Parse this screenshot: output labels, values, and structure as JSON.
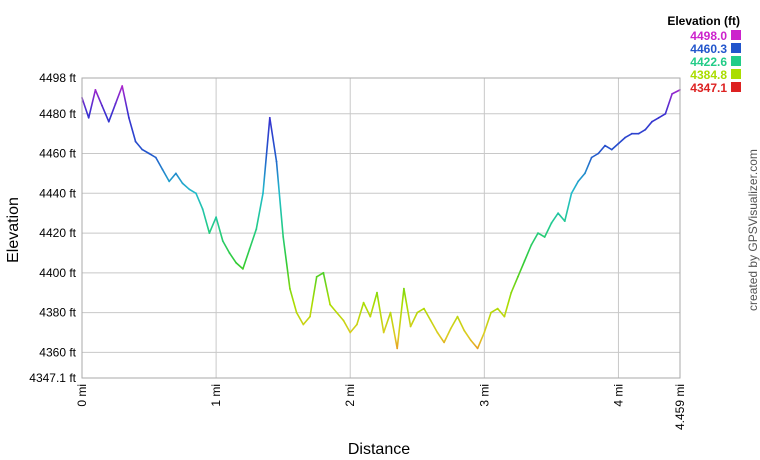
{
  "chart_data": {
    "type": "line",
    "xlabel": "Distance",
    "ylabel": "Elevation",
    "x_unit": "mi",
    "y_unit": "ft",
    "xlim": [
      0,
      4.459
    ],
    "ylim": [
      4347.1,
      4498
    ],
    "x_ticks": [
      "0 mi",
      "1 mi",
      "2 mi",
      "3 mi",
      "4 mi",
      "4.459 mi"
    ],
    "x_tick_values": [
      0,
      1,
      2,
      3,
      4,
      4.459
    ],
    "y_ticks": [
      "4347.1 ft",
      "4360 ft",
      "4380 ft",
      "4400 ft",
      "4420 ft",
      "4440 ft",
      "4460 ft",
      "4480 ft",
      "4498 ft"
    ],
    "y_tick_values": [
      4347.1,
      4360,
      4380,
      4400,
      4420,
      4440,
      4460,
      4480,
      4498
    ],
    "grid": true,
    "legend": {
      "title": "Elevation (ft)",
      "placement": "top-right",
      "entries": [
        {
          "label": "4498.0",
          "color": "#cc22cc"
        },
        {
          "label": "4460.3",
          "color": "#2255cc"
        },
        {
          "label": "4422.6",
          "color": "#22cc88"
        },
        {
          "label": "4384.8",
          "color": "#aadd00"
        },
        {
          "label": "4347.1",
          "color": "#dd2222"
        }
      ]
    },
    "credit": "created by GPSVisualizer.com",
    "x": [
      0,
      0.05,
      0.1,
      0.15,
      0.2,
      0.25,
      0.3,
      0.35,
      0.4,
      0.45,
      0.5,
      0.55,
      0.6,
      0.65,
      0.7,
      0.75,
      0.8,
      0.85,
      0.9,
      0.95,
      1.0,
      1.05,
      1.1,
      1.15,
      1.2,
      1.25,
      1.3,
      1.35,
      1.4,
      1.45,
      1.5,
      1.55,
      1.6,
      1.65,
      1.7,
      1.75,
      1.8,
      1.85,
      1.9,
      1.95,
      2.0,
      2.05,
      2.1,
      2.15,
      2.2,
      2.25,
      2.3,
      2.35,
      2.4,
      2.45,
      2.5,
      2.55,
      2.6,
      2.65,
      2.7,
      2.75,
      2.8,
      2.85,
      2.9,
      2.95,
      3.0,
      3.05,
      3.1,
      3.15,
      3.2,
      3.25,
      3.3,
      3.35,
      3.4,
      3.45,
      3.5,
      3.55,
      3.6,
      3.65,
      3.7,
      3.75,
      3.8,
      3.85,
      3.9,
      3.95,
      4.0,
      4.05,
      4.1,
      4.15,
      4.2,
      4.25,
      4.3,
      4.35,
      4.4,
      4.459
    ],
    "y": [
      4488,
      4478,
      4492,
      4484,
      4476,
      4485,
      4494,
      4478,
      4466,
      4462,
      4460,
      4458,
      4452,
      4446,
      4450,
      4445,
      4442,
      4440,
      4432,
      4420,
      4428,
      4416,
      4410,
      4405,
      4402,
      4412,
      4422,
      4440,
      4478,
      4456,
      4418,
      4392,
      4380,
      4374,
      4378,
      4398,
      4400,
      4384,
      4380,
      4376,
      4370,
      4374,
      4385,
      4378,
      4390,
      4370,
      4380,
      4362,
      4392,
      4373,
      4380,
      4382,
      4376,
      4370,
      4365,
      4372,
      4378,
      4371,
      4366,
      4362,
      4370,
      4380,
      4382,
      4378,
      4390,
      4398,
      4406,
      4414,
      4420,
      4418,
      4425,
      4430,
      4426,
      4440,
      4446,
      4450,
      4458,
      4460,
      4464,
      4462,
      4465,
      4468,
      4470,
      4470,
      4472,
      4476,
      4478,
      4480,
      4490,
      4492
    ]
  }
}
